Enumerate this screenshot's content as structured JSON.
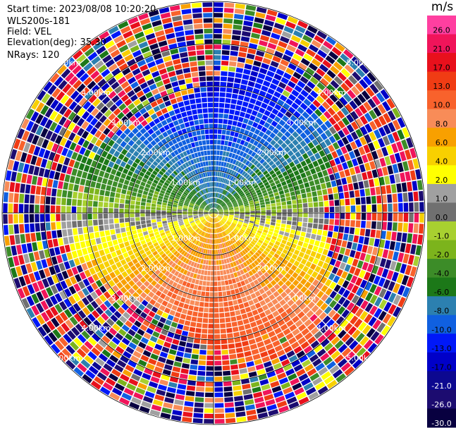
{
  "header": {
    "start_time": "Start time: 2023/08/08 10:20:20",
    "instrument": "WLS200s-181",
    "field": "Field: VEL",
    "elevation": "Elevation(deg): 35.30",
    "nrays": "NRays: 120"
  },
  "colorbar": {
    "unit": "m/s",
    "levels": [
      {
        "label": "26.0",
        "color": "#ff3fa0"
      },
      {
        "label": "21.0",
        "color": "#f0145a"
      },
      {
        "label": "17.0",
        "color": "#e8101c"
      },
      {
        "label": "13.0",
        "color": "#f03c14"
      },
      {
        "label": "10.0",
        "color": "#f8622c"
      },
      {
        "label": "8.0",
        "color": "#f88c58"
      },
      {
        "label": "6.0",
        "color": "#f8a000"
      },
      {
        "label": "4.0",
        "color": "#f8d000"
      },
      {
        "label": "2.0",
        "color": "#ffff00"
      },
      {
        "label": "1.0",
        "color": "#a0a0a0"
      },
      {
        "label": "0.0",
        "color": "#707070"
      },
      {
        "label": "-1.0",
        "color": "#a8d030"
      },
      {
        "label": "-2.0",
        "color": "#7cb41c"
      },
      {
        "label": "-4.0",
        "color": "#3c8c28"
      },
      {
        "label": "-6.0",
        "color": "#1c7818"
      },
      {
        "label": "-8.0",
        "color": "#2c80b0"
      },
      {
        "label": "-10.0",
        "color": "#1060e0"
      },
      {
        "label": "-13.0",
        "color": "#0018f8"
      },
      {
        "label": "-17.0",
        "color": "#0000c8"
      },
      {
        "label": "-21.0",
        "color": "#0c0890"
      },
      {
        "label": "-26.0",
        "color": "#1c0c70"
      },
      {
        "label": "-30.0",
        "color": "#080040"
      }
    ]
  },
  "chart_data": {
    "type": "heatmap",
    "projection": "polar-ppi",
    "field": "VEL",
    "units": "m/s",
    "nrays": 120,
    "elevation_deg": 35.3,
    "range_rings_km": [
      1.0,
      2.0,
      3.0,
      4.0,
      5.0
    ],
    "ring_labels": [
      "1.00km",
      "2.00km",
      "3.00km",
      "4.00km",
      "5.00km"
    ],
    "max_range_km": 5.0,
    "vmin": -30.0,
    "vmax": 26.0
  }
}
